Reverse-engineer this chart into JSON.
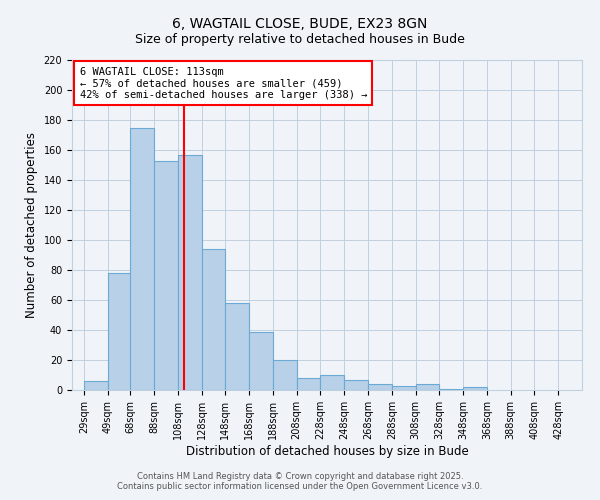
{
  "title": "6, WAGTAIL CLOSE, BUDE, EX23 8GN",
  "subtitle": "Size of property relative to detached houses in Bude",
  "xlabel": "Distribution of detached houses by size in Bude",
  "ylabel": "Number of detached properties",
  "bar_values": [
    6,
    78,
    175,
    153,
    157,
    94,
    58,
    39,
    20,
    8,
    10,
    7,
    4,
    3,
    4,
    1,
    2
  ],
  "bin_starts": [
    29,
    49,
    68,
    88,
    108,
    128,
    148,
    168,
    188,
    208,
    228,
    248,
    268,
    288,
    308,
    328,
    348
  ],
  "bin_width": 20,
  "x_tick_positions": [
    29,
    49,
    68,
    88,
    108,
    128,
    148,
    168,
    188,
    208,
    228,
    248,
    268,
    288,
    308,
    328,
    348,
    368,
    388,
    408,
    428
  ],
  "x_tick_labels": [
    "29sqm",
    "49sqm",
    "68sqm",
    "88sqm",
    "108sqm",
    "128sqm",
    "148sqm",
    "168sqm",
    "188sqm",
    "208sqm",
    "228sqm",
    "248sqm",
    "268sqm",
    "288sqm",
    "308sqm",
    "328sqm",
    "348sqm",
    "368sqm",
    "388sqm",
    "408sqm",
    "428sqm"
  ],
  "bar_color": "#b8d0e8",
  "bar_edge_color": "#6aaad4",
  "red_line_x": 113,
  "ylim": [
    0,
    220
  ],
  "xlim": [
    19,
    448
  ],
  "yticks": [
    0,
    20,
    40,
    60,
    80,
    100,
    120,
    140,
    160,
    180,
    200,
    220
  ],
  "annotation_title": "6 WAGTAIL CLOSE: 113sqm",
  "annotation_line1": "← 57% of detached houses are smaller (459)",
  "annotation_line2": "42% of semi-detached houses are larger (338) →",
  "footnote1": "Contains HM Land Registry data © Crown copyright and database right 2025.",
  "footnote2": "Contains public sector information licensed under the Open Government Licence v3.0.",
  "bg_color": "#f0f4f8",
  "grid_color": "#c0d0e0",
  "title_fontsize": 10,
  "subtitle_fontsize": 9,
  "axis_label_fontsize": 8.5,
  "tick_fontsize": 7,
  "annot_fontsize": 7.5,
  "footnote_fontsize": 6
}
